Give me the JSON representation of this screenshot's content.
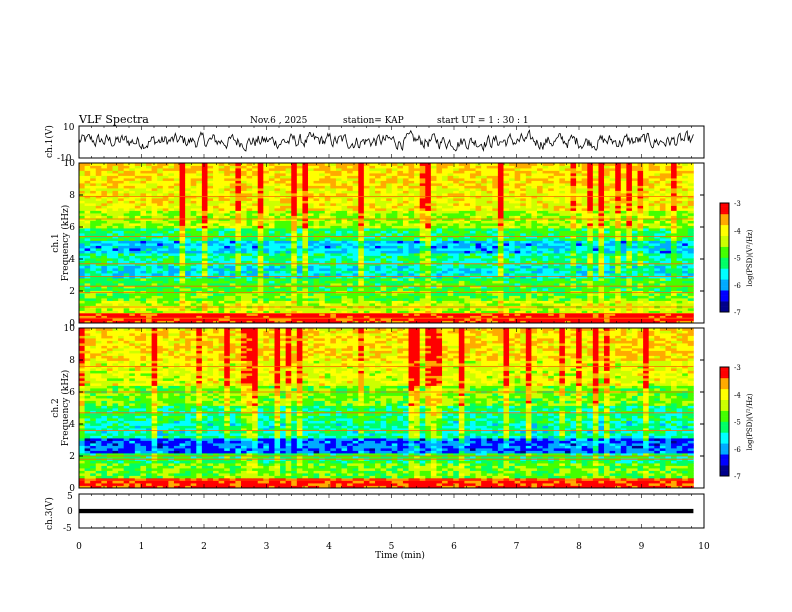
{
  "header": {
    "title": "VLF Spectra",
    "date": "Nov.6  , 2025",
    "station": "station= KAP",
    "start": "start  UT  =   1 : 30 : 1"
  },
  "colors": {
    "background": "#ffffff",
    "ink": "#000000",
    "colormap": [
      "#00008b",
      "#0000ff",
      "#00aaff",
      "#00ffff",
      "#00ff66",
      "#44ff00",
      "#ccff00",
      "#ffff00",
      "#ffaa00",
      "#ff0000"
    ]
  },
  "chart_data": [
    {
      "type": "line",
      "id": "ch1-waveform",
      "ylabel": "ch.1(V)",
      "xlim": [
        0,
        10
      ],
      "ylim": [
        -10,
        10
      ],
      "ytick_labels": [
        "10",
        "-10"
      ],
      "description_values": {
        "mean": 0.5,
        "amplitude": 4.5
      }
    },
    {
      "type": "heatmap",
      "id": "ch1-spectrogram",
      "ylabel": "ch.1\nFrequency (kHz)",
      "ylabel_lines": [
        "ch.1",
        "Frequency (kHz)"
      ],
      "xlim": [
        0,
        10
      ],
      "ylim": [
        0,
        10
      ],
      "ytick_labels": [
        "0",
        "2",
        "4",
        "6",
        "8",
        "10"
      ],
      "data_extent_min": [
        0,
        9.83
      ],
      "colorbar": {
        "label": "log(PSD)(V²/Hz)",
        "range": [
          -7,
          -3
        ],
        "tick_labels": [
          "-3",
          "-4",
          "-5",
          "-6",
          "-7"
        ]
      },
      "bands_kHz": [
        {
          "lo": 0.0,
          "hi": 0.6,
          "level": -3.2
        },
        {
          "lo": 0.6,
          "hi": 1.4,
          "level": -4.4
        },
        {
          "lo": 1.4,
          "hi": 2.0,
          "level": -4.8
        },
        {
          "lo": 2.0,
          "hi": 2.8,
          "level": -5.0
        },
        {
          "lo": 2.8,
          "hi": 3.6,
          "level": -5.6
        },
        {
          "lo": 3.6,
          "hi": 4.4,
          "level": -5.3
        },
        {
          "lo": 4.4,
          "hi": 5.2,
          "level": -5.8
        },
        {
          "lo": 5.2,
          "hi": 6.0,
          "level": -5.1
        },
        {
          "lo": 6.0,
          "hi": 7.0,
          "level": -4.5
        },
        {
          "lo": 7.0,
          "hi": 8.5,
          "level": -4.1
        },
        {
          "lo": 8.5,
          "hi": 10.0,
          "level": -3.9
        }
      ],
      "horizontal_lines_kHz": [
        0.3,
        0.6,
        1.0,
        1.9,
        2.3,
        2.9,
        3.7,
        5.4,
        6.5,
        7.9
      ]
    },
    {
      "type": "heatmap",
      "id": "ch2-spectrogram",
      "ylabel": "ch.2\nFrequency (kHz)",
      "ylabel_lines": [
        "ch.2",
        "Frequency (kHz)"
      ],
      "xlim": [
        0,
        10
      ],
      "ylim": [
        0,
        10
      ],
      "ytick_labels": [
        "0",
        "2",
        "4",
        "6",
        "8",
        "10"
      ],
      "data_extent_min": [
        0,
        9.83
      ],
      "colorbar": {
        "label": "log(PSD)(V²/Hz)",
        "range": [
          -7,
          -3
        ],
        "tick_labels": [
          "-3",
          "-4",
          "-5",
          "-6",
          "-7"
        ]
      },
      "bands_kHz": [
        {
          "lo": 0.0,
          "hi": 0.6,
          "level": -3.3
        },
        {
          "lo": 0.6,
          "hi": 1.6,
          "level": -4.8
        },
        {
          "lo": 1.6,
          "hi": 2.2,
          "level": -5.1
        },
        {
          "lo": 2.2,
          "hi": 3.2,
          "level": -6.2
        },
        {
          "lo": 3.2,
          "hi": 4.2,
          "level": -5.4
        },
        {
          "lo": 4.2,
          "hi": 5.2,
          "level": -5.2
        },
        {
          "lo": 5.2,
          "hi": 6.4,
          "level": -4.7
        },
        {
          "lo": 6.4,
          "hi": 8.0,
          "level": -4.2
        },
        {
          "lo": 8.0,
          "hi": 10.0,
          "level": -3.9
        }
      ],
      "horizontal_lines_kHz": [
        0.5,
        1.8,
        2.0,
        3.6,
        4.7,
        6.0,
        7.6
      ]
    },
    {
      "type": "line",
      "id": "ch3-waveform",
      "ylabel": "ch.3(V)",
      "xlim": [
        0,
        10
      ],
      "ylim": [
        -5,
        5
      ],
      "ytick_labels": [
        "5",
        "0",
        "-5"
      ],
      "description_values": {
        "mean": 0.0,
        "amplitude": 0.25
      },
      "xlabel": "Time  (min)",
      "xtick_labels": [
        "0",
        "1",
        "2",
        "3",
        "4",
        "5",
        "6",
        "7",
        "8",
        "9",
        "10"
      ]
    }
  ]
}
